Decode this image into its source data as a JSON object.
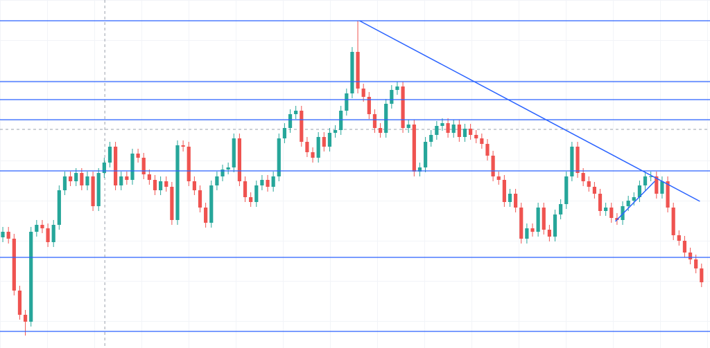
{
  "chart_data": {
    "type": "candlestick",
    "xlim": [
      -0.5,
      125.5
    ],
    "ylim": [
      0,
      503
    ],
    "up_color": "#26a69a",
    "down_color": "#ef5350",
    "line_color": "#2962ff",
    "open": [
      160,
      168,
      158,
      83,
      48,
      38,
      168,
      178,
      173,
      153,
      178,
      228,
      248,
      241,
      253,
      235,
      248,
      205,
      253,
      268,
      291,
      235,
      248,
      243,
      281,
      275,
      251,
      243,
      228,
      241,
      233,
      185,
      293,
      291,
      241,
      228,
      203,
      181,
      235,
      248,
      258,
      261,
      303,
      241,
      218,
      211,
      235,
      243,
      233,
      248,
      303,
      318,
      338,
      343,
      298,
      283,
      275,
      305,
      291,
      311,
      315,
      343,
      368,
      428,
      375,
      363,
      338,
      318,
      311,
      353,
      373,
      378,
      318,
      323,
      255,
      261,
      298,
      308,
      321,
      325,
      311,
      323,
      305,
      317,
      308,
      303,
      295,
      278,
      248,
      243,
      211,
      223,
      203,
      158,
      173,
      168,
      203,
      171,
      161,
      193,
      208,
      248,
      291,
      253,
      241,
      233,
      223,
      198,
      203,
      188,
      185,
      205,
      213,
      218,
      235,
      248,
      248,
      223,
      241,
      203,
      163,
      155,
      138,
      128,
      115
    ],
    "high": [
      175,
      175,
      165,
      90,
      55,
      175,
      185,
      185,
      180,
      185,
      235,
      255,
      255,
      260,
      260,
      255,
      255,
      260,
      275,
      298,
      298,
      255,
      255,
      288,
      288,
      282,
      258,
      250,
      248,
      248,
      240,
      300,
      300,
      298,
      248,
      235,
      210,
      242,
      255,
      265,
      268,
      310,
      310,
      248,
      225,
      242,
      250,
      250,
      255,
      310,
      325,
      345,
      350,
      350,
      305,
      290,
      312,
      312,
      318,
      322,
      350,
      375,
      435,
      473,
      382,
      370,
      345,
      325,
      360,
      380,
      385,
      385,
      330,
      330,
      268,
      305,
      315,
      328,
      332,
      332,
      330,
      330,
      324,
      324,
      315,
      310,
      302,
      285,
      255,
      250,
      230,
      230,
      210,
      180,
      180,
      210,
      210,
      178,
      200,
      215,
      255,
      298,
      298,
      260,
      248,
      240,
      230,
      210,
      210,
      195,
      212,
      220,
      225,
      242,
      255,
      255,
      255,
      248,
      248,
      210,
      170,
      162,
      145,
      135,
      122
    ],
    "low": [
      153,
      151,
      76,
      41,
      18,
      31,
      161,
      166,
      146,
      146,
      171,
      221,
      234,
      234,
      228,
      228,
      198,
      198,
      246,
      261,
      228,
      228,
      236,
      236,
      268,
      244,
      236,
      221,
      221,
      226,
      178,
      178,
      284,
      234,
      221,
      196,
      174,
      174,
      228,
      241,
      251,
      254,
      234,
      211,
      204,
      204,
      228,
      226,
      226,
      241,
      296,
      311,
      331,
      291,
      276,
      268,
      268,
      284,
      284,
      304,
      308,
      336,
      361,
      368,
      356,
      331,
      311,
      304,
      304,
      346,
      366,
      311,
      311,
      248,
      248,
      254,
      291,
      301,
      314,
      304,
      304,
      298,
      298,
      301,
      296,
      288,
      271,
      241,
      236,
      204,
      204,
      196,
      151,
      151,
      161,
      161,
      164,
      154,
      154,
      186,
      201,
      241,
      246,
      234,
      226,
      216,
      191,
      191,
      181,
      178,
      178,
      198,
      206,
      211,
      228,
      241,
      216,
      216,
      196,
      156,
      148,
      131,
      121,
      108,
      88
    ],
    "close": [
      168,
      158,
      83,
      48,
      38,
      168,
      178,
      173,
      153,
      178,
      228,
      248,
      241,
      253,
      235,
      248,
      205,
      253,
      268,
      291,
      235,
      248,
      243,
      281,
      275,
      251,
      243,
      228,
      241,
      233,
      185,
      293,
      291,
      241,
      228,
      203,
      181,
      235,
      248,
      258,
      261,
      303,
      241,
      218,
      211,
      235,
      243,
      233,
      248,
      303,
      318,
      338,
      343,
      298,
      283,
      275,
      305,
      291,
      311,
      315,
      343,
      368,
      428,
      375,
      363,
      338,
      318,
      311,
      353,
      373,
      378,
      318,
      323,
      255,
      261,
      298,
      308,
      321,
      325,
      311,
      323,
      305,
      317,
      308,
      303,
      295,
      278,
      248,
      243,
      211,
      223,
      203,
      158,
      173,
      168,
      203,
      171,
      161,
      193,
      208,
      248,
      291,
      253,
      241,
      233,
      223,
      198,
      203,
      188,
      185,
      205,
      213,
      218,
      235,
      248,
      248,
      223,
      241,
      203,
      163,
      155,
      138,
      128,
      115,
      95
    ],
    "levels": [
      473,
      385,
      359,
      330,
      256,
      131,
      24
    ],
    "trend_lines": [
      {
        "x": [
          63.3,
          123.7
        ],
        "y": [
          473,
          212
        ]
      },
      {
        "x": [
          108.7,
          115.7
        ],
        "y": [
          183,
          241
        ]
      }
    ],
    "crosshair": {
      "x": 18.1,
      "y": 316
    }
  }
}
